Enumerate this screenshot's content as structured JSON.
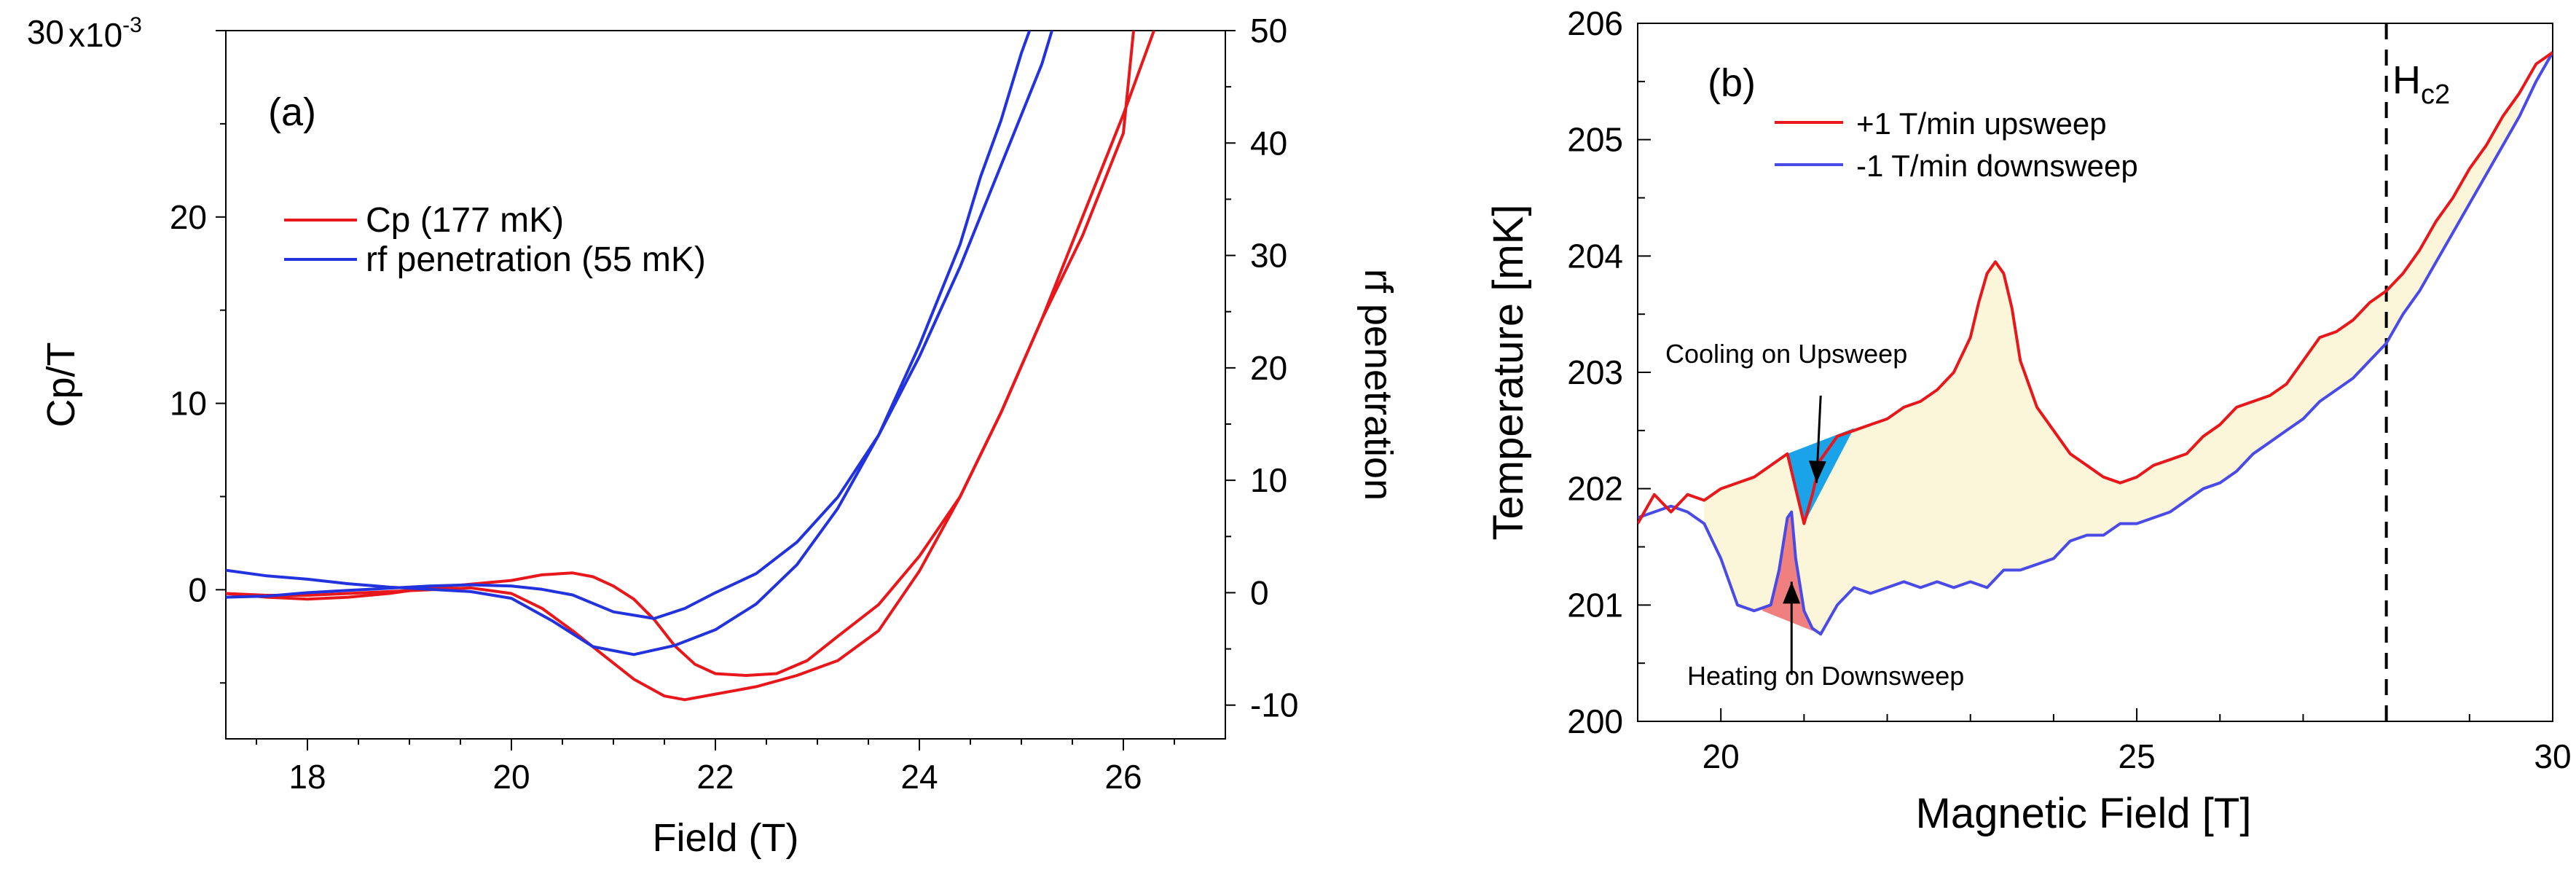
{
  "colors": {
    "red": "#e8171b",
    "blue": "#2233dd",
    "blue_b": "#4a4ae6",
    "fill_yellow": "#fbf6d9",
    "fill_cyan": "#1aa3e8",
    "fill_pink": "#f08080"
  },
  "chart_data": [
    {
      "type": "line",
      "panel_label": "(a)",
      "xlabel": "Field (T)",
      "ylabel": "Cp/T",
      "ylabel_right": "rf penetration",
      "xlim": [
        17.2,
        27.0
      ],
      "ylim": [
        -8,
        30
      ],
      "ylim_right": [
        -13,
        50
      ],
      "y_multiplier": "x10",
      "y_exponent": "-3",
      "x_ticks": [
        18,
        20,
        22,
        24,
        26
      ],
      "y_ticks": [
        0,
        10,
        20,
        30
      ],
      "y_ticks_right": [
        -10,
        0,
        10,
        20,
        30,
        40,
        50
      ],
      "legend": [
        {
          "label": "Cp (177 mK)",
          "color": "red"
        },
        {
          "label": "rf penetration (55 mK)",
          "color": "blue"
        }
      ],
      "series": [
        {
          "name": "Cp (177 mK) upsweep",
          "color": "red",
          "axis": "left",
          "x": [
            17.2,
            17.6,
            18.0,
            18.4,
            18.8,
            19.2,
            19.6,
            20.0,
            20.3,
            20.6,
            20.8,
            21.0,
            21.2,
            21.4,
            21.6,
            21.8,
            22.0,
            22.3,
            22.6,
            22.9,
            23.2,
            23.6,
            24.0,
            24.4,
            24.8,
            25.2,
            25.6,
            26.0,
            26.1
          ],
          "y": [
            -0.2,
            -0.4,
            -0.5,
            -0.4,
            -0.2,
            0.1,
            0.3,
            0.5,
            0.8,
            0.9,
            0.7,
            0.2,
            -0.5,
            -1.6,
            -3.0,
            -4.0,
            -4.5,
            -4.6,
            -4.5,
            -3.8,
            -2.5,
            -0.8,
            1.8,
            5.0,
            9.5,
            14.5,
            19.0,
            24.5,
            30.0
          ]
        },
        {
          "name": "Cp (177 mK) downsweep",
          "color": "red",
          "axis": "left",
          "x": [
            26.3,
            26.0,
            25.6,
            25.2,
            24.8,
            24.4,
            24.0,
            23.6,
            23.2,
            22.8,
            22.4,
            22.0,
            21.7,
            21.5,
            21.2,
            20.9,
            20.6,
            20.3,
            20.0,
            19.6,
            19.2,
            18.8,
            18.4,
            18.0,
            17.6,
            17.2
          ],
          "y": [
            30.0,
            25.5,
            20.0,
            14.5,
            9.5,
            5.0,
            1.0,
            -2.2,
            -3.8,
            -4.6,
            -5.2,
            -5.6,
            -5.9,
            -5.7,
            -4.8,
            -3.5,
            -2.2,
            -1.0,
            -0.2,
            0.1,
            0.0,
            -0.1,
            -0.2,
            -0.3,
            -0.3,
            -0.2
          ]
        },
        {
          "name": "rf penetration (55 mK) downsweep",
          "color": "blue",
          "axis": "right",
          "x": [
            17.2,
            17.6,
            18.0,
            18.4,
            18.8,
            19.2,
            19.6,
            20.0,
            20.4,
            20.8,
            21.2,
            21.6,
            22.0,
            22.4,
            22.8,
            23.2,
            23.6,
            24.0,
            24.4,
            24.6,
            24.8,
            25.0,
            25.2
          ],
          "y": [
            2.0,
            1.5,
            1.2,
            0.8,
            0.5,
            0.3,
            0.1,
            -0.5,
            -2.5,
            -4.8,
            -5.5,
            -4.7,
            -3.3,
            -1.0,
            2.5,
            7.5,
            14.0,
            22.0,
            31.0,
            37.0,
            42.0,
            48.0,
            53.0
          ]
        },
        {
          "name": "rf penetration (55 mK) upsweep",
          "color": "blue",
          "axis": "right",
          "x": [
            25.4,
            25.2,
            24.8,
            24.4,
            24.0,
            23.6,
            23.2,
            22.8,
            22.4,
            22.0,
            21.7,
            21.4,
            21.0,
            20.6,
            20.3,
            20.0,
            19.6,
            19.2,
            18.8,
            18.4,
            18.0,
            17.6,
            17.2
          ],
          "y": [
            53.0,
            47.0,
            38.0,
            29.0,
            21.0,
            14.0,
            8.5,
            4.5,
            1.7,
            0.0,
            -1.4,
            -2.3,
            -1.7,
            -0.2,
            0.3,
            0.6,
            0.7,
            0.6,
            0.4,
            0.2,
            0.0,
            -0.3,
            -0.4
          ]
        }
      ]
    },
    {
      "type": "line",
      "panel_label": "(b)",
      "xlabel": "Magnetic Field [T]",
      "ylabel": "Temperature [mK]",
      "xlim": [
        19,
        30
      ],
      "ylim": [
        200,
        206
      ],
      "x_ticks": [
        20,
        25,
        30
      ],
      "y_ticks": [
        200,
        201,
        202,
        203,
        204,
        205,
        206
      ],
      "vline_x": 28,
      "vline_label_main": "H",
      "vline_label_sub": "c2",
      "legend": [
        {
          "label": "+1 T/min upsweep",
          "color": "red"
        },
        {
          "label": "-1 T/min downsweep",
          "color": "blue"
        }
      ],
      "annotations": [
        {
          "text": "Cooling on Upsweep",
          "x": 21.05,
          "y": 202.35
        },
        {
          "text": "Heating on Downsweep",
          "x": 20.85,
          "y": 201.1
        }
      ],
      "series": [
        {
          "name": "+1 T/min upsweep",
          "color": "red",
          "x": [
            19.0,
            19.2,
            19.4,
            19.6,
            19.8,
            20.0,
            20.2,
            20.4,
            20.6,
            20.8,
            20.9,
            21.0,
            21.1,
            21.2,
            21.4,
            21.6,
            21.8,
            22.0,
            22.2,
            22.4,
            22.6,
            22.8,
            23.0,
            23.1,
            23.2,
            23.3,
            23.4,
            23.5,
            23.6,
            23.8,
            24.0,
            24.2,
            24.4,
            24.6,
            24.8,
            25.0,
            25.2,
            25.4,
            25.6,
            25.8,
            26.0,
            26.2,
            26.4,
            26.6,
            26.8,
            27.0,
            27.2,
            27.4,
            27.6,
            27.8,
            28.0,
            28.2,
            28.4,
            28.6,
            28.8,
            29.0,
            29.2,
            29.4,
            29.6,
            29.8,
            30.0
          ],
          "y": [
            201.7,
            201.95,
            201.8,
            201.95,
            201.9,
            202.0,
            202.05,
            202.1,
            202.2,
            202.3,
            202.0,
            201.7,
            201.95,
            202.25,
            202.45,
            202.5,
            202.55,
            202.6,
            202.7,
            202.75,
            202.85,
            203.0,
            203.3,
            203.6,
            203.85,
            203.95,
            203.85,
            203.55,
            203.1,
            202.7,
            202.5,
            202.3,
            202.2,
            202.1,
            202.05,
            202.1,
            202.2,
            202.25,
            202.3,
            202.45,
            202.55,
            202.7,
            202.75,
            202.8,
            202.9,
            203.1,
            203.3,
            203.35,
            203.45,
            203.6,
            203.7,
            203.85,
            204.05,
            204.3,
            204.5,
            204.75,
            204.95,
            205.2,
            205.4,
            205.65,
            205.75
          ]
        },
        {
          "name": "-1 T/min downsweep",
          "color": "blue",
          "x": [
            19.0,
            19.2,
            19.4,
            19.6,
            19.8,
            20.0,
            20.2,
            20.4,
            20.6,
            20.7,
            20.8,
            20.85,
            20.9,
            21.0,
            21.1,
            21.2,
            21.4,
            21.6,
            21.8,
            22.0,
            22.2,
            22.4,
            22.6,
            22.8,
            23.0,
            23.2,
            23.4,
            23.6,
            23.8,
            24.0,
            24.2,
            24.4,
            24.6,
            24.8,
            25.0,
            25.2,
            25.4,
            25.6,
            25.8,
            26.0,
            26.2,
            26.4,
            26.6,
            26.8,
            27.0,
            27.2,
            27.4,
            27.6,
            27.8,
            28.0,
            28.2,
            28.4,
            28.6,
            28.8,
            29.0,
            29.2,
            29.4,
            29.6,
            29.8,
            30.0
          ],
          "y": [
            201.75,
            201.8,
            201.85,
            201.8,
            201.7,
            201.4,
            201.0,
            200.95,
            201.0,
            201.3,
            201.75,
            201.8,
            201.4,
            200.95,
            200.8,
            200.75,
            201.0,
            201.15,
            201.1,
            201.15,
            201.2,
            201.15,
            201.2,
            201.15,
            201.2,
            201.15,
            201.3,
            201.3,
            201.35,
            201.4,
            201.55,
            201.6,
            201.6,
            201.7,
            201.7,
            201.75,
            201.8,
            201.9,
            202.0,
            202.05,
            202.15,
            202.3,
            202.4,
            202.5,
            202.6,
            202.75,
            202.85,
            202.95,
            203.1,
            203.25,
            203.5,
            203.7,
            203.95,
            204.2,
            204.45,
            204.7,
            204.95,
            205.2,
            205.5,
            205.75
          ]
        }
      ]
    }
  ]
}
